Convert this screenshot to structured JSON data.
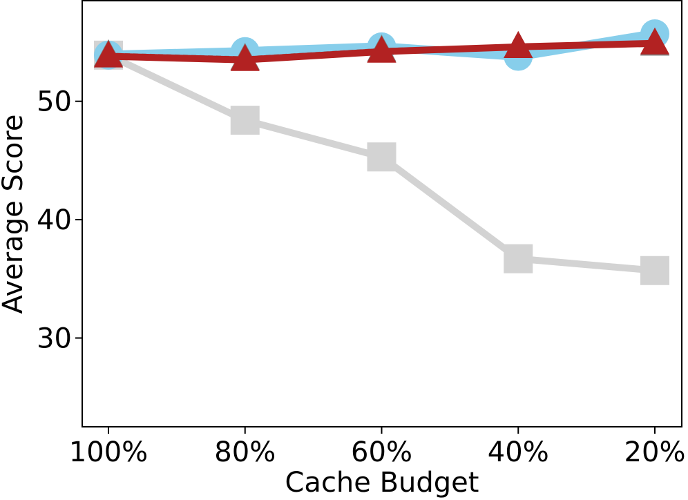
{
  "chart_data": {
    "type": "line",
    "xlabel": "Cache Budget",
    "ylabel": "Average Score",
    "categories": [
      "100%",
      "80%",
      "60%",
      "40%",
      "20%"
    ],
    "yticks": [
      30,
      40,
      50
    ],
    "ylim": [
      22.5,
      58.5
    ],
    "grid": false,
    "legend": "none",
    "series": [
      {
        "values": [
          53.9,
          48.4,
          45.3,
          36.7,
          35.7
        ],
        "color": "#d3d3d3",
        "marker": "square",
        "style": "solid"
      },
      {
        "values": [
          53.9,
          54.2,
          54.6,
          53.8,
          55.7
        ],
        "color": "#87ceeb",
        "marker": "circle",
        "style": "solid"
      },
      {
        "values": [
          53.9,
          53.6,
          54.3,
          54.6,
          54.8
        ],
        "color": "#808080",
        "marker": "triangle",
        "style": "dotted"
      },
      {
        "values": [
          53.8,
          53.5,
          54.2,
          54.6,
          54.9
        ],
        "color": "#b22222",
        "marker": "triangle",
        "style": "solid"
      }
    ]
  }
}
